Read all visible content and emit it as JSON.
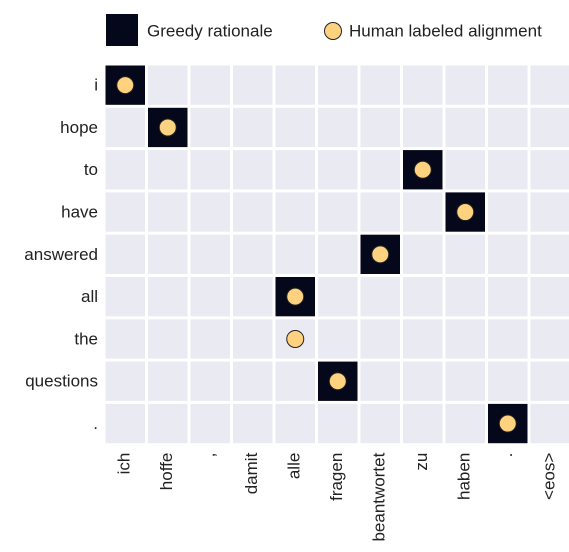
{
  "chart_data": {
    "type": "alignment",
    "x_categories": [
      "ich",
      "hoffe",
      ",",
      "damit",
      "alle",
      "fragen",
      "beantwortet",
      "zu",
      "haben",
      ".",
      "<eos>"
    ],
    "y_categories": [
      "i",
      "hope",
      "to",
      "have",
      "answered",
      "all",
      "the",
      "questions",
      "."
    ],
    "cell_color": "#eaeaf2",
    "series": [
      {
        "name": "Greedy rationale",
        "marker": "square",
        "color": "#05071a",
        "values": [
          0,
          1,
          7,
          8,
          6,
          4,
          null,
          5,
          9
        ]
      },
      {
        "name": "Human labeled alignment",
        "marker": "circle",
        "color": "#fed27f",
        "values": [
          0,
          1,
          7,
          8,
          6,
          4,
          4,
          5,
          9
        ]
      }
    ]
  }
}
